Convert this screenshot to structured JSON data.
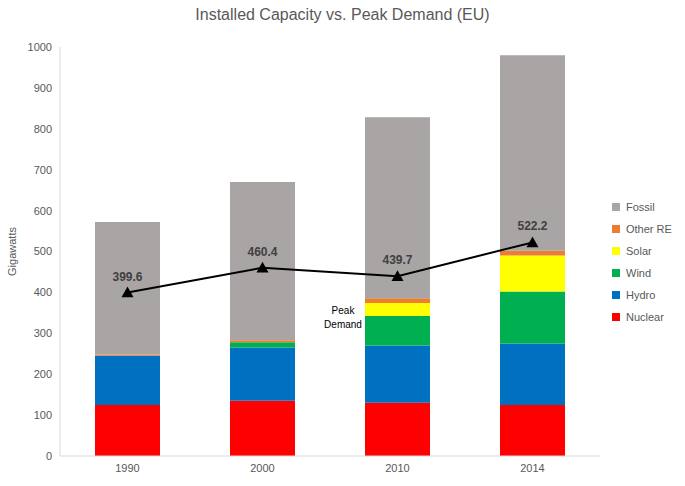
{
  "chart_data": {
    "type": "bar",
    "title": "Installed Capacity vs. Peak Demand (EU)",
    "y_label": "Gigawatts",
    "categories": [
      "1990",
      "2000",
      "2010",
      "2014"
    ],
    "stacked": true,
    "grid": false,
    "legend": "right",
    "ylim": [
      0,
      1000
    ],
    "yticks": [
      0,
      100,
      200,
      300,
      400,
      500,
      600,
      700,
      800,
      900,
      1000
    ],
    "series": [
      {
        "name": "Nuclear",
        "color": "#ff0000",
        "values": [
          125,
          135,
          130,
          125
        ]
      },
      {
        "name": "Hydro",
        "color": "#0070c0",
        "values": [
          120,
          130,
          140,
          150
        ]
      },
      {
        "name": "Wind",
        "color": "#00b050",
        "values": [
          0,
          13,
          72,
          127
        ]
      },
      {
        "name": "Solar",
        "color": "#ffff00",
        "values": [
          0,
          0,
          32,
          88
        ]
      },
      {
        "name": "Other RE",
        "color": "#ed7d31",
        "values": [
          3,
          5,
          12,
          12
        ]
      },
      {
        "name": "Fossil",
        "color": "#a9a5a5",
        "values": [
          324,
          387,
          442,
          478
        ]
      },
      {
        "name": "Peak Demand",
        "type": "line",
        "color": "#000000",
        "marker": "triangle",
        "data_labels": true,
        "values": [
          399.6,
          460.4,
          439.7,
          522.2
        ]
      }
    ]
  }
}
